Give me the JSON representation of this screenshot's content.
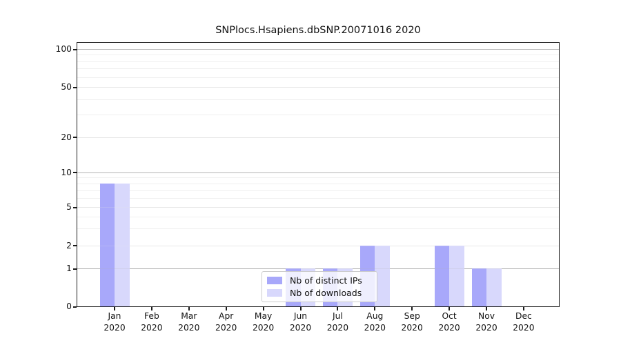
{
  "chart_data": {
    "type": "bar",
    "title": "SNPlocs.Hsapiens.dbSNP.20071016 2020",
    "categories": [
      "Jan",
      "Feb",
      "Mar",
      "Apr",
      "May",
      "Jun",
      "Jul",
      "Aug",
      "Sep",
      "Oct",
      "Nov",
      "Dec"
    ],
    "category_year": "2020",
    "series": [
      {
        "name": "Nb of distinct IPs",
        "color": "#a8a8fa",
        "values": [
          8,
          0,
          0,
          0,
          0,
          1,
          1,
          2,
          0,
          2,
          1,
          0
        ]
      },
      {
        "name": "Nb of downloads",
        "color": "#d8d8fc",
        "values": [
          8,
          0,
          0,
          0,
          0,
          1,
          1,
          2,
          0,
          2,
          1,
          0
        ]
      }
    ],
    "y_axis": {
      "scale": "log",
      "ylim": [
        0,
        100
      ],
      "ticks": [
        100,
        50,
        20,
        10,
        5,
        2,
        1,
        0
      ],
      "major_gridlines": [
        100,
        10,
        1
      ],
      "mid_gridlines": [
        50,
        20,
        5,
        2
      ],
      "minor_gridlines": [
        90,
        80,
        70,
        60,
        40,
        30,
        9,
        8,
        7,
        6,
        4,
        3
      ]
    },
    "legend": {
      "position": "bottom-center"
    },
    "colors": {
      "grid_major": "#b3b3b3",
      "grid_mid": "#e6e6e6",
      "grid_minor": "#f0f0f0",
      "axis": "#1a1a1a",
      "text": "#111111"
    }
  }
}
